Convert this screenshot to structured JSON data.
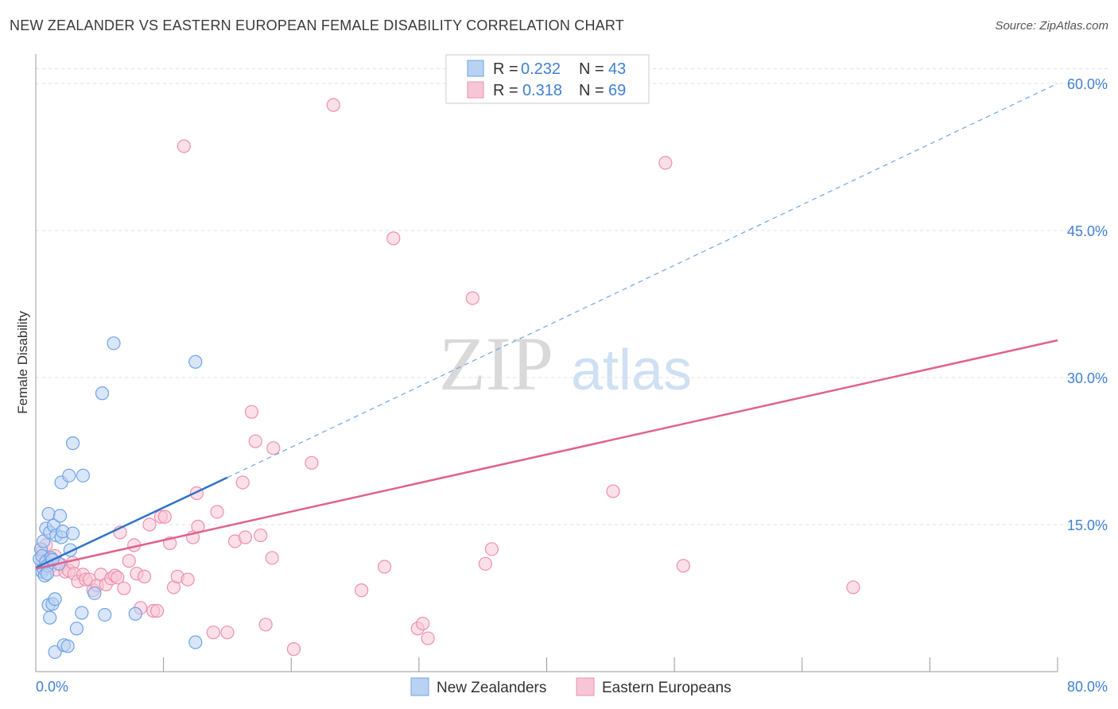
{
  "title": "NEW ZEALANDER VS EASTERN EUROPEAN FEMALE DISABILITY CORRELATION CHART",
  "source": "Source: ZipAtlas.com",
  "watermark": {
    "zip": "ZIP",
    "atlas": "atlas"
  },
  "colors": {
    "blue": "#6ea3e8",
    "blue_fill": "#b9d2f2",
    "blue_line": "#2f72c8",
    "pink": "#ee8fae",
    "pink_fill": "#f7c6d6",
    "pink_line": "#e0628e",
    "tick": "#3f7fd4",
    "grid": "#e2e2e2"
  },
  "legend": {
    "rows": [
      {
        "r_label": "R =",
        "r_value": "0.232",
        "n_label": "N =",
        "n_value": "43"
      },
      {
        "r_label": "R =",
        "r_value": "0.318",
        "n_label": "N =",
        "n_value": "69"
      }
    ]
  },
  "chart_data": {
    "type": "scatter",
    "title": "NEW ZEALANDER VS EASTERN EUROPEAN FEMALE DISABILITY CORRELATION CHART",
    "xlabel": "",
    "ylabel": "Female Disability",
    "xlim": [
      0,
      80
    ],
    "ylim": [
      0,
      63
    ],
    "x_tick_labels": [
      "0.0%",
      "80.0%"
    ],
    "y_ticks": [
      15,
      30,
      45,
      60
    ],
    "y_tick_labels": [
      "15.0%",
      "30.0%",
      "45.0%",
      "60.0%"
    ],
    "grid": true,
    "legend_position": "top-center",
    "series": [
      {
        "name": "New Zealanders",
        "r": 0.232,
        "n": 43,
        "trend": {
          "x0": 0,
          "y0": 10.6,
          "x1": 15,
          "y1": 19.8,
          "dashed_to_x": 80,
          "dashed_to_y": 60.0
        },
        "points": [
          [
            0.3,
            11.5
          ],
          [
            0.4,
            12.5
          ],
          [
            0.5,
            10.2
          ],
          [
            0.5,
            11.8
          ],
          [
            0.6,
            13.3
          ],
          [
            0.6,
            10.5
          ],
          [
            0.7,
            9.8
          ],
          [
            0.8,
            14.6
          ],
          [
            0.8,
            11.2
          ],
          [
            0.9,
            10.8
          ],
          [
            1.0,
            6.8
          ],
          [
            1.0,
            16.1
          ],
          [
            1.1,
            14.2
          ],
          [
            1.1,
            5.5
          ],
          [
            1.2,
            11.6
          ],
          [
            1.3,
            6.9
          ],
          [
            1.4,
            14.9
          ],
          [
            1.5,
            2.0
          ],
          [
            1.5,
            7.4
          ],
          [
            1.6,
            13.9
          ],
          [
            1.8,
            11.0
          ],
          [
            1.9,
            15.9
          ],
          [
            2.0,
            13.7
          ],
          [
            2.0,
            19.3
          ],
          [
            2.1,
            14.3
          ],
          [
            2.2,
            2.7
          ],
          [
            2.5,
            2.6
          ],
          [
            2.6,
            20.0
          ],
          [
            2.7,
            12.4
          ],
          [
            2.9,
            14.1
          ],
          [
            2.9,
            23.3
          ],
          [
            3.2,
            4.4
          ],
          [
            3.6,
            6.0
          ],
          [
            3.7,
            20.0
          ],
          [
            4.6,
            8.0
          ],
          [
            5.2,
            28.4
          ],
          [
            5.4,
            5.8
          ],
          [
            6.1,
            33.5
          ],
          [
            7.8,
            5.9
          ],
          [
            12.5,
            31.6
          ],
          [
            12.5,
            3.0
          ],
          [
            0.9,
            10.0
          ],
          [
            1.3,
            11.4
          ]
        ]
      },
      {
        "name": "Eastern Europeans",
        "r": 0.318,
        "n": 69,
        "trend": {
          "x0": 0,
          "y0": 10.5,
          "x1": 80,
          "y1": 33.8
        },
        "points": [
          [
            0.5,
            12.2
          ],
          [
            0.6,
            11.0
          ],
          [
            0.8,
            12.9
          ],
          [
            1.0,
            11.5
          ],
          [
            1.2,
            10.8
          ],
          [
            1.5,
            11.8
          ],
          [
            1.6,
            10.4
          ],
          [
            2.0,
            10.9
          ],
          [
            2.3,
            10.2
          ],
          [
            2.6,
            10.3
          ],
          [
            2.9,
            11.1
          ],
          [
            3.0,
            10.0
          ],
          [
            3.3,
            9.2
          ],
          [
            3.7,
            9.9
          ],
          [
            3.9,
            9.4
          ],
          [
            4.2,
            9.4
          ],
          [
            4.5,
            8.3
          ],
          [
            4.8,
            8.8
          ],
          [
            5.1,
            9.9
          ],
          [
            5.5,
            8.9
          ],
          [
            5.9,
            9.5
          ],
          [
            6.2,
            9.8
          ],
          [
            6.4,
            9.6
          ],
          [
            6.6,
            14.2
          ],
          [
            6.9,
            8.5
          ],
          [
            7.3,
            11.3
          ],
          [
            7.7,
            12.9
          ],
          [
            7.9,
            10.0
          ],
          [
            8.2,
            6.5
          ],
          [
            8.5,
            9.7
          ],
          [
            8.9,
            15.0
          ],
          [
            9.2,
            6.2
          ],
          [
            9.5,
            6.2
          ],
          [
            9.8,
            15.8
          ],
          [
            10.1,
            15.8
          ],
          [
            10.5,
            13.1
          ],
          [
            10.8,
            8.6
          ],
          [
            11.1,
            9.7
          ],
          [
            11.6,
            53.6
          ],
          [
            11.9,
            9.4
          ],
          [
            12.3,
            13.7
          ],
          [
            12.7,
            14.8
          ],
          [
            12.6,
            18.2
          ],
          [
            13.9,
            4.0
          ],
          [
            14.2,
            16.3
          ],
          [
            15.0,
            4.0
          ],
          [
            15.6,
            13.3
          ],
          [
            16.2,
            19.3
          ],
          [
            16.4,
            13.7
          ],
          [
            16.9,
            26.5
          ],
          [
            17.2,
            23.5
          ],
          [
            17.6,
            13.9
          ],
          [
            18.0,
            4.8
          ],
          [
            18.6,
            22.8
          ],
          [
            18.5,
            11.6
          ],
          [
            20.2,
            2.3
          ],
          [
            21.6,
            21.3
          ],
          [
            23.3,
            57.8
          ],
          [
            25.5,
            8.3
          ],
          [
            27.3,
            10.7
          ],
          [
            28.0,
            44.2
          ],
          [
            29.9,
            4.4
          ],
          [
            30.3,
            4.9
          ],
          [
            30.7,
            3.4
          ],
          [
            34.2,
            38.1
          ],
          [
            35.2,
            11.0
          ],
          [
            35.7,
            12.5
          ],
          [
            45.2,
            18.4
          ],
          [
            49.3,
            51.9
          ],
          [
            50.7,
            10.8
          ],
          [
            64.0,
            8.6
          ]
        ]
      }
    ]
  }
}
